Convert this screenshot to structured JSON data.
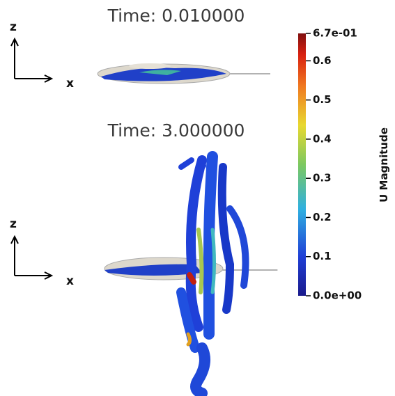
{
  "panels": [
    {
      "title": "Time: 0.010000",
      "axis_vertical": "z",
      "axis_horizontal": "x"
    },
    {
      "title": "Time: 3.000000",
      "axis_vertical": "z",
      "axis_horizontal": "x"
    }
  ],
  "colorbar": {
    "title": "U Magnitude",
    "range": [
      0,
      0.67
    ],
    "ticks": [
      {
        "value": 0.67,
        "label": "6.7e-01"
      },
      0.6,
      0.5,
      0.4,
      0.3,
      0.2,
      0.1,
      {
        "value": 0,
        "label": "0.0e+00"
      }
    ]
  }
}
